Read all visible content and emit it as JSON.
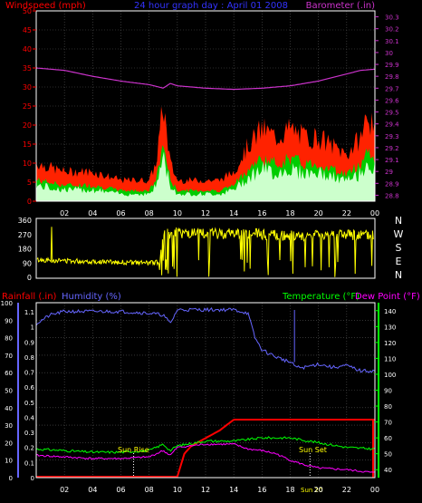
{
  "colors": {
    "wind": "#ff0000",
    "gust_fill": "#ff2200",
    "avg_fill": "#ccffcc",
    "green": "#00cc00",
    "barometer": "#cc33cc",
    "title": "#3333ff",
    "direction": "#ffff00",
    "rain": "#ff0000",
    "humidity": "#6666ff",
    "temperature": "#00ff00",
    "dewpoint": "#ff00ff",
    "sun": "#ffff00",
    "axis": "#ffffff",
    "grid": "#555555"
  },
  "top": {
    "title": "24 hour graph day : April 01 2008",
    "left_label": "Windspeed (mph)",
    "right_label": "Barometer (.in)",
    "left_ticks": [
      "0",
      "5",
      "10",
      "15",
      "20",
      "25",
      "30",
      "35",
      "40",
      "45",
      "50"
    ],
    "right_ticks": [
      "28.8",
      "28.9",
      "29",
      "29.1",
      "29.2",
      "29.3",
      "29.4",
      "29.5",
      "29.6",
      "29.7",
      "29.8",
      "29.9",
      "30",
      "30.1",
      "30.2",
      "30.3"
    ],
    "x_ticks": [
      "02",
      "04",
      "06",
      "08",
      "10",
      "12",
      "14",
      "16",
      "18",
      "20",
      "22",
      "00"
    ]
  },
  "middle": {
    "left_ticks": [
      "0",
      "90",
      "180",
      "270",
      "360"
    ],
    "right_letters": [
      "N",
      "W",
      "S",
      "E",
      "N"
    ]
  },
  "bottom": {
    "rain_label": "Rainfall (.in)",
    "humidity_label": "Humidity (%)",
    "temp_label": "Temperature (°F)",
    "dew_label": "Dew Point (°F)",
    "humidity_ticks": [
      "0",
      "10",
      "20",
      "30",
      "40",
      "50",
      "60",
      "70",
      "80",
      "90",
      "100"
    ],
    "rain_ticks": [
      "0",
      "0.1",
      "0.2",
      "0.3",
      "0.4",
      "0.5",
      "0.6",
      "0.7",
      "0.8",
      "0.9",
      "1",
      "1.1"
    ],
    "temp_ticks": [
      "40",
      "50",
      "60",
      "70",
      "80",
      "90",
      "100",
      "110",
      "120",
      "130",
      "140"
    ],
    "x_ticks": [
      "02",
      "04",
      "06",
      "08",
      "10",
      "12",
      "14",
      "16",
      "18",
      "20",
      "22",
      "00"
    ],
    "sunrise_label": "Sun Rise",
    "sunset_label": "Sun Set",
    "sun_x_label": "Sun 20"
  },
  "chart_data": [
    {
      "type": "line",
      "title": "24 hour graph day : April 01 2008",
      "xlabel": "",
      "ylabel": "Windspeed (mph)",
      "ylim": [
        0,
        50
      ],
      "y2label": "Barometer (.in)",
      "y2lim": [
        28.75,
        30.35
      ],
      "x_ticks": [
        "02",
        "04",
        "06",
        "08",
        "10",
        "12",
        "14",
        "16",
        "18",
        "20",
        "22",
        "00"
      ],
      "series": [
        {
          "name": "Windspeed (mph)",
          "x": [
            0,
            1,
            2,
            3,
            4,
            5,
            6,
            7,
            8,
            8.5,
            9,
            9.5,
            10,
            11,
            12,
            13,
            14,
            15,
            16,
            17,
            18,
            19,
            20,
            21,
            22,
            23,
            23.5,
            24
          ],
          "values": [
            4,
            3.5,
            3,
            3,
            3,
            2.5,
            2,
            2,
            2,
            4,
            11,
            4,
            2,
            2,
            2,
            2,
            3,
            6,
            8,
            7,
            8,
            7,
            7,
            6,
            5,
            7,
            10,
            7
          ]
        },
        {
          "name": "Barometer (.in)",
          "x": [
            0,
            2,
            4,
            6,
            8,
            9,
            9.5,
            10,
            11,
            12,
            14,
            16,
            18,
            20,
            22,
            23,
            24
          ],
          "values": [
            29.87,
            29.85,
            29.8,
            29.76,
            29.73,
            29.7,
            29.74,
            29.72,
            29.71,
            29.7,
            29.69,
            29.7,
            29.72,
            29.76,
            29.82,
            29.85,
            29.86
          ]
        }
      ],
      "grid": true
    },
    {
      "type": "line",
      "title": "",
      "ylabel": "",
      "ylim": [
        0,
        360
      ],
      "series": [
        {
          "x": [
            0,
            2,
            4,
            6,
            8,
            8.7,
            9,
            10,
            12,
            14,
            16,
            18,
            20,
            22,
            24
          ],
          "values": [
            110,
            105,
            100,
            95,
            90,
            95,
            270,
            280,
            270,
            280,
            270,
            260,
            270,
            270,
            260
          ]
        }
      ]
    },
    {
      "type": "line",
      "title": "",
      "ylabel": "Humidity (%)",
      "ylim": [
        0,
        100
      ],
      "y2label": "Temperature (°F)",
      "y2lim": [
        35,
        145
      ],
      "x_ticks": [
        "02",
        "04",
        "06",
        "08",
        "10",
        "12",
        "14",
        "16",
        "18",
        "20",
        "22",
        "00"
      ],
      "series": [
        {
          "name": "Rainfall (.in)",
          "x": [
            0,
            10,
            10.5,
            11,
            12,
            13,
            14,
            24
          ],
          "values": [
            0,
            0,
            0.15,
            0.2,
            0.25,
            0.3,
            0.37,
            0.37
          ]
        },
        {
          "name": "Humidity (%)",
          "x": [
            0,
            1,
            2,
            4,
            6,
            8,
            9,
            9.5,
            10,
            12,
            14,
            15,
            15.5,
            16,
            17,
            18,
            18.5,
            19,
            20,
            21,
            22,
            23,
            24
          ],
          "values": [
            88,
            93,
            95,
            95,
            95,
            94,
            93,
            88,
            96,
            96,
            96,
            94,
            80,
            73,
            69,
            66,
            63,
            63,
            65,
            63,
            64,
            61,
            61
          ]
        },
        {
          "name": "Temperature (°F)",
          "x": [
            0,
            2,
            4,
            6,
            8,
            9,
            9.5,
            10,
            12,
            14,
            16,
            18,
            20,
            22,
            24
          ],
          "values": [
            53,
            52,
            51,
            51,
            52,
            56,
            52,
            55,
            58,
            58,
            60,
            60,
            57,
            54,
            53
          ]
        },
        {
          "name": "Dew Point (°F)",
          "x": [
            0,
            2,
            4,
            6,
            8,
            9,
            9.5,
            10,
            12,
            14,
            15,
            16,
            17,
            18,
            19,
            20,
            22,
            24
          ],
          "values": [
            49,
            48,
            47,
            47,
            48,
            52,
            49,
            54,
            56,
            56,
            53,
            52,
            50,
            46,
            43,
            41,
            40,
            38
          ]
        }
      ]
    }
  ]
}
